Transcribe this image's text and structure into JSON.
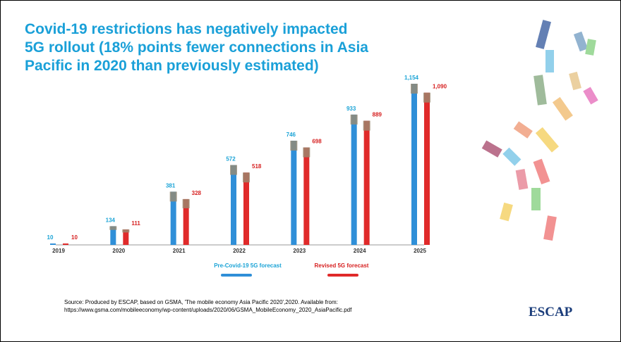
{
  "chart_data": {
    "type": "bar",
    "title": "Covid-19 restrictions has negatively impacted 5G rollout (18% points fewer connections in Asia Pacific in 2020 than previously estimated)",
    "categories": [
      "2019",
      "2020",
      "2021",
      "2022",
      "2023",
      "2024",
      "2025"
    ],
    "series": [
      {
        "name": "Pre-Covid-19 5G forecast",
        "color": "#2f8fd8",
        "values": [
          10,
          134,
          381,
          572,
          746,
          933,
          1154
        ],
        "value_labels": [
          "10",
          "134",
          "381",
          "572",
          "746",
          "933",
          "1,154"
        ]
      },
      {
        "name": "Revised 5G forecast",
        "color": "#e02a2a",
        "values": [
          10,
          111,
          328,
          518,
          698,
          889,
          1090
        ],
        "value_labels": [
          "10",
          "111",
          "328",
          "518",
          "698",
          "889",
          "1,090"
        ]
      }
    ],
    "label_colors": [
      "#1aa3d6",
      "#d61f1f"
    ],
    "source": [
      "Source: Produced by ESCAP, based on GSMA, 'The mobile economy Asia Pacific 2020',2020. Available from:",
      "https://www.gsma.com/mobileeconomy/wp-content/uploads/2020/06/GSMA_MobileEconomy_2020_AsiaPacific.pdf"
    ],
    "logo": "ESCAP"
  }
}
